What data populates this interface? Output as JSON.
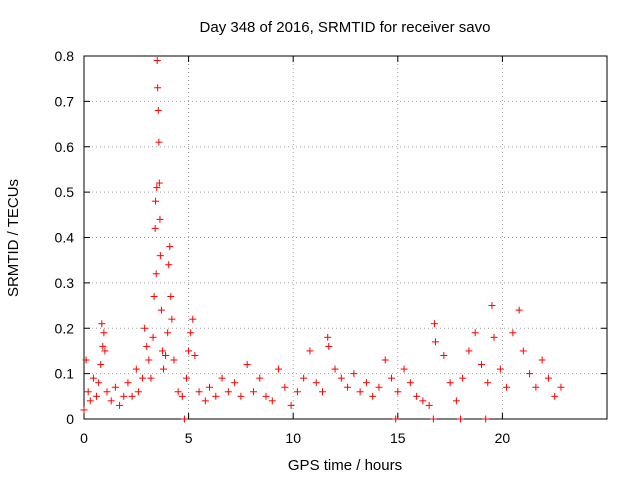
{
  "chart_data": {
    "type": "scatter",
    "title": "Day 348 of 2016, SRMTID for receiver savo",
    "xlabel": "GPS time / hours",
    "ylabel": "SRMTID / TECUs",
    "xlim": [
      0,
      25
    ],
    "ylim": [
      0,
      0.8
    ],
    "xticks": [
      0,
      5,
      10,
      15,
      20
    ],
    "yticks": [
      0,
      0.1,
      0.2,
      0.3,
      0.4,
      0.5,
      0.6,
      0.7,
      0.8
    ],
    "grid": true,
    "marker": "+",
    "color": "#ff0000",
    "series": [
      {
        "name": "SRMTID",
        "points": [
          [
            0.1,
            0.13
          ],
          [
            0.2,
            0.06
          ],
          [
            0.3,
            0.04
          ],
          [
            0.45,
            0.09
          ],
          [
            0.6,
            0.05
          ],
          [
            0.7,
            0.08
          ],
          [
            0.8,
            0.12
          ],
          [
            0.85,
            0.21
          ],
          [
            0.9,
            0.16
          ],
          [
            0.95,
            0.19
          ],
          [
            1.0,
            0.15
          ],
          [
            1.1,
            0.06
          ],
          [
            1.3,
            0.04
          ],
          [
            1.5,
            0.07
          ],
          [
            1.7,
            0.03
          ],
          [
            1.9,
            0.05
          ],
          [
            2.1,
            0.08
          ],
          [
            2.3,
            0.05
          ],
          [
            2.5,
            0.11
          ],
          [
            2.6,
            0.06
          ],
          [
            2.8,
            0.09
          ],
          [
            2.9,
            0.2
          ],
          [
            3.0,
            0.16
          ],
          [
            3.1,
            0.13
          ],
          [
            3.2,
            0.09
          ],
          [
            3.3,
            0.18
          ],
          [
            3.35,
            0.27
          ],
          [
            3.4,
            0.42
          ],
          [
            3.42,
            0.48
          ],
          [
            3.45,
            0.32
          ],
          [
            3.48,
            0.51
          ],
          [
            3.5,
            0.79
          ],
          [
            3.52,
            0.73
          ],
          [
            3.55,
            0.68
          ],
          [
            3.58,
            0.61
          ],
          [
            3.6,
            0.52
          ],
          [
            3.63,
            0.44
          ],
          [
            3.65,
            0.36
          ],
          [
            3.7,
            0.24
          ],
          [
            3.75,
            0.15
          ],
          [
            3.8,
            0.11
          ],
          [
            3.9,
            0.14
          ],
          [
            4.0,
            0.19
          ],
          [
            4.05,
            0.34
          ],
          [
            4.1,
            0.38
          ],
          [
            4.15,
            0.27
          ],
          [
            4.2,
            0.22
          ],
          [
            4.3,
            0.13
          ],
          [
            4.5,
            0.06
          ],
          [
            4.7,
            0.05
          ],
          [
            4.9,
            0.09
          ],
          [
            5.0,
            0.15
          ],
          [
            5.1,
            0.19
          ],
          [
            5.2,
            0.22
          ],
          [
            5.3,
            0.14
          ],
          [
            5.5,
            0.06
          ],
          [
            5.8,
            0.04
          ],
          [
            6.0,
            0.07
          ],
          [
            6.3,
            0.05
          ],
          [
            6.6,
            0.09
          ],
          [
            6.9,
            0.06
          ],
          [
            7.2,
            0.08
          ],
          [
            7.5,
            0.05
          ],
          [
            7.8,
            0.12
          ],
          [
            8.1,
            0.06
          ],
          [
            8.4,
            0.09
          ],
          [
            8.7,
            0.05
          ],
          [
            9.0,
            0.04
          ],
          [
            9.3,
            0.11
          ],
          [
            9.6,
            0.07
          ],
          [
            9.9,
            0.03
          ],
          [
            10.2,
            0.06
          ],
          [
            10.5,
            0.09
          ],
          [
            10.8,
            0.15
          ],
          [
            11.1,
            0.08
          ],
          [
            11.4,
            0.06
          ],
          [
            11.65,
            0.18
          ],
          [
            11.7,
            0.16
          ],
          [
            12.0,
            0.11
          ],
          [
            12.3,
            0.09
          ],
          [
            12.6,
            0.07
          ],
          [
            12.9,
            0.1
          ],
          [
            13.2,
            0.06
          ],
          [
            13.5,
            0.08
          ],
          [
            13.8,
            0.05
          ],
          [
            14.1,
            0.07
          ],
          [
            14.4,
            0.13
          ],
          [
            14.7,
            0.09
          ],
          [
            15.0,
            0.06
          ],
          [
            15.3,
            0.11
          ],
          [
            15.6,
            0.08
          ],
          [
            15.9,
            0.05
          ],
          [
            16.2,
            0.04
          ],
          [
            16.5,
            0.03
          ],
          [
            16.75,
            0.21
          ],
          [
            16.8,
            0.17
          ],
          [
            17.2,
            0.14
          ],
          [
            17.5,
            0.08
          ],
          [
            17.8,
            0.04
          ],
          [
            18.1,
            0.09
          ],
          [
            18.4,
            0.15
          ],
          [
            18.7,
            0.19
          ],
          [
            19.0,
            0.12
          ],
          [
            19.3,
            0.08
          ],
          [
            19.5,
            0.25
          ],
          [
            19.6,
            0.18
          ],
          [
            19.9,
            0.11
          ],
          [
            20.2,
            0.07
          ],
          [
            20.5,
            0.19
          ],
          [
            20.8,
            0.24
          ],
          [
            21.0,
            0.15
          ],
          [
            21.3,
            0.1
          ],
          [
            21.6,
            0.07
          ],
          [
            21.9,
            0.13
          ],
          [
            22.2,
            0.09
          ],
          [
            22.5,
            0.05
          ],
          [
            22.8,
            0.07
          ],
          [
            0.0,
            0.02
          ],
          [
            4.8,
            0.0
          ],
          [
            14.9,
            0.0
          ],
          [
            16.7,
            0.0
          ],
          [
            18.0,
            0.0
          ],
          [
            19.2,
            0.0
          ]
        ]
      }
    ]
  }
}
